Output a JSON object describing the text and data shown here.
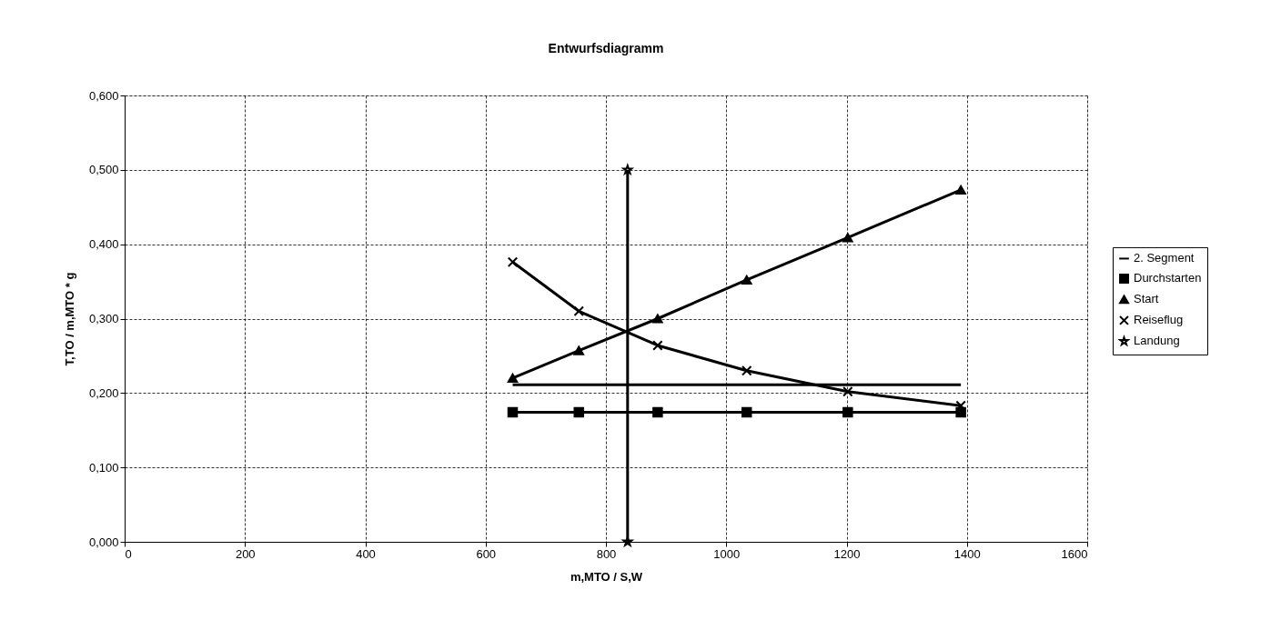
{
  "chart_data": {
    "type": "line",
    "title": "Entwurfsdiagramm",
    "xlabel": "m,MTO / S,W",
    "ylabel": "T,TO / m,MTO * g",
    "xlim": [
      0,
      1600
    ],
    "xticks": [
      0,
      200,
      400,
      600,
      800,
      1000,
      1200,
      1400,
      1600
    ],
    "ylim": [
      0,
      0.6
    ],
    "yticks": [
      {
        "value": 0,
        "label": "0,000"
      },
      {
        "value": 0.1,
        "label": "0,100"
      },
      {
        "value": 0.2,
        "label": "0,200"
      },
      {
        "value": 0.3,
        "label": "0,300"
      },
      {
        "value": 0.4,
        "label": "0,400"
      },
      {
        "value": 0.5,
        "label": "0,500"
      },
      {
        "value": 0.6,
        "label": "0,600"
      }
    ],
    "grid": true,
    "legend": "right",
    "line_style": "solid",
    "series": [
      {
        "name": "2. Segment",
        "color": "#000000",
        "marker": "none",
        "x": [
          645,
          755,
          886,
          1034,
          1202,
          1390
        ],
        "values": [
          0.211,
          0.211,
          0.211,
          0.211,
          0.211,
          0.211
        ]
      },
      {
        "name": "Durchstarten",
        "color": "#000000",
        "marker": "square",
        "x": [
          645,
          755,
          886,
          1034,
          1202,
          1390
        ],
        "values": [
          0.174,
          0.174,
          0.174,
          0.174,
          0.174,
          0.174
        ]
      },
      {
        "name": "Start",
        "color": "#000000",
        "marker": "triangle",
        "x": [
          645,
          755,
          886,
          1034,
          1202,
          1390
        ],
        "values": [
          0.22,
          0.257,
          0.3,
          0.352,
          0.409,
          0.473
        ]
      },
      {
        "name": "Reiseflug",
        "color": "#000000",
        "marker": "cross",
        "x": [
          645,
          755,
          886,
          1034,
          1202,
          1390
        ],
        "values": [
          0.376,
          0.31,
          0.264,
          0.23,
          0.202,
          0.183
        ]
      },
      {
        "name": "Landung",
        "color": "#000000",
        "marker": "star",
        "x": [
          836,
          836
        ],
        "values": [
          0.0,
          0.5
        ]
      }
    ]
  }
}
